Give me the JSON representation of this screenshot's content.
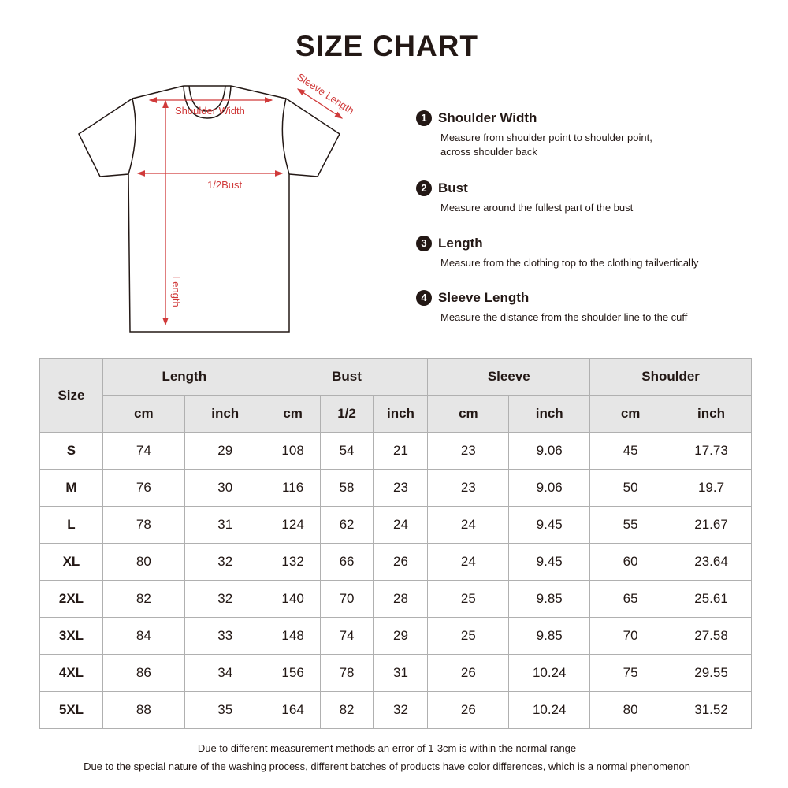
{
  "title": "SIZE CHART",
  "diagram_labels": {
    "shoulder": "Shoulder Width",
    "sleeve": "Sleeve Length",
    "bust": "1/2Bust",
    "length": "Length"
  },
  "colors": {
    "measure_line": "#d03a3a",
    "header_bg": "#e6e6e6"
  },
  "definitions": [
    {
      "num": "1",
      "title": "Shoulder Width",
      "desc": "Measure from shoulder point to shoulder point, across shoulder back"
    },
    {
      "num": "2",
      "title": "Bust",
      "desc": "Measure around the fullest part of the bust"
    },
    {
      "num": "3",
      "title": "Length",
      "desc": "Measure from the clothing top to the clothing tailvertically"
    },
    {
      "num": "4",
      "title": "Sleeve Length",
      "desc": "Measure the distance from the shoulder line to the cuff"
    }
  ],
  "table": {
    "size_header": "Size",
    "groups": [
      "Length",
      "Bust",
      "Sleeve",
      "Shoulder"
    ],
    "subheaders": [
      "cm",
      "inch",
      "cm",
      "1/2",
      "inch",
      "cm",
      "inch",
      "cm",
      "inch"
    ],
    "rows": [
      [
        "S",
        "74",
        "29",
        "108",
        "54",
        "21",
        "23",
        "9.06",
        "45",
        "17.73"
      ],
      [
        "M",
        "76",
        "30",
        "116",
        "58",
        "23",
        "23",
        "9.06",
        "50",
        "19.7"
      ],
      [
        "L",
        "78",
        "31",
        "124",
        "62",
        "24",
        "24",
        "9.45",
        "55",
        "21.67"
      ],
      [
        "XL",
        "80",
        "32",
        "132",
        "66",
        "26",
        "24",
        "9.45",
        "60",
        "23.64"
      ],
      [
        "2XL",
        "82",
        "32",
        "140",
        "70",
        "28",
        "25",
        "9.85",
        "65",
        "25.61"
      ],
      [
        "3XL",
        "84",
        "33",
        "148",
        "74",
        "29",
        "25",
        "9.85",
        "70",
        "27.58"
      ],
      [
        "4XL",
        "86",
        "34",
        "156",
        "78",
        "31",
        "26",
        "10.24",
        "75",
        "29.55"
      ],
      [
        "5XL",
        "88",
        "35",
        "164",
        "82",
        "32",
        "26",
        "10.24",
        "80",
        "31.52"
      ]
    ]
  },
  "notes": [
    "Due to different measurement methods an error of 1-3cm is within the normal range",
    "Due to the special nature of the washing process, different batches of products have color differences, which is a normal phenomenon"
  ]
}
